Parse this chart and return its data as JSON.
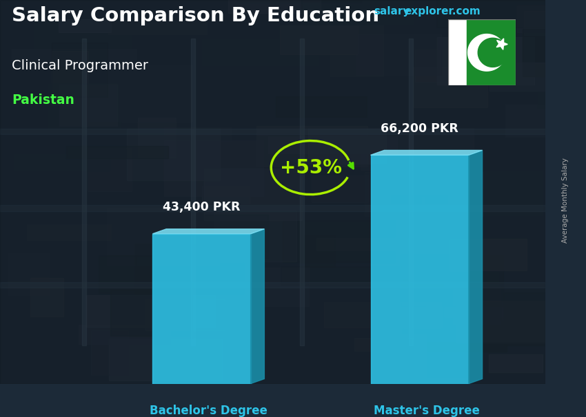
{
  "title": "Salary Comparison By Education",
  "subtitle": "Clinical Programmer",
  "country": "Pakistan",
  "salary_text": "salary",
  "explorer_text": "explorer.com",
  "ylabel": "Average Monthly Salary",
  "categories": [
    "Bachelor's Degree",
    "Master's Degree"
  ],
  "values": [
    43400,
    66200
  ],
  "value_labels": [
    "43,400 PKR",
    "66,200 PKR"
  ],
  "pct_change": "+53%",
  "bar_color_front": "#2EC4E8",
  "bar_color_side": "#1A8FAA",
  "bar_color_top": "#7ADFF5",
  "title_color": "#FFFFFF",
  "subtitle_color": "#FFFFFF",
  "country_color": "#44FF44",
  "pct_color": "#AAEE00",
  "arc_color": "#AAEE00",
  "arrow_color": "#55DD00",
  "value_label_color": "#FFFFFF",
  "xlabel_color": "#2EC4E8",
  "watermark_salary_color": "#2EC4E8",
  "watermark_explorer_color": "#2EC4E8",
  "ylabel_color": "#AAAAAA",
  "flag_green": "#1A8C2C",
  "flag_white": "#FFFFFF",
  "bg_dark": "#1C2A38",
  "bar_positions": [
    0.28,
    0.68
  ],
  "bar_width": 0.18,
  "ylim_max": 1.0,
  "figsize": [
    8.5,
    6.06
  ],
  "dpi": 100
}
